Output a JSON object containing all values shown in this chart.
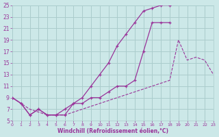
{
  "title": "",
  "xlabel": "Windchill (Refroidissement éolien,°C)",
  "bg_color": "#cce8e8",
  "grid_color": "#aacccc",
  "line_color": "#993399",
  "xlim": [
    0,
    23
  ],
  "ylim": [
    5,
    25
  ],
  "xticks": [
    0,
    1,
    2,
    3,
    4,
    5,
    6,
    7,
    8,
    9,
    10,
    11,
    12,
    13,
    14,
    15,
    16,
    17,
    18,
    19,
    20,
    21,
    22,
    23
  ],
  "yticks": [
    5,
    7,
    9,
    11,
    13,
    15,
    17,
    19,
    21,
    23,
    25
  ],
  "curve1_x": [
    0,
    1,
    2,
    3,
    4,
    5,
    6,
    7,
    8,
    9,
    10,
    11,
    12,
    13,
    14,
    15,
    16,
    17,
    18
  ],
  "curve1_y": [
    9,
    8,
    6,
    7,
    6,
    6,
    6,
    8,
    9,
    11,
    13,
    15,
    18,
    20,
    22,
    24,
    24.5,
    25,
    25
  ],
  "curve2_x": [
    18,
    17,
    16,
    15,
    14,
    13,
    12,
    11,
    10,
    9,
    8,
    7,
    6,
    5,
    4,
    3,
    2,
    1,
    0
  ],
  "curve2_y": [
    22,
    22,
    22,
    17,
    12,
    11,
    11,
    10,
    9,
    9,
    8,
    8,
    7,
    6,
    6,
    7,
    6,
    8,
    9
  ],
  "curve3_x": [
    0,
    1,
    2,
    4,
    6,
    8,
    10,
    12,
    14,
    16,
    18,
    19,
    20,
    21,
    22,
    23
  ],
  "curve3_y": [
    9,
    8,
    7,
    6,
    6,
    7,
    8,
    9,
    10,
    11,
    12,
    19,
    15.5,
    16,
    15.5,
    13
  ]
}
